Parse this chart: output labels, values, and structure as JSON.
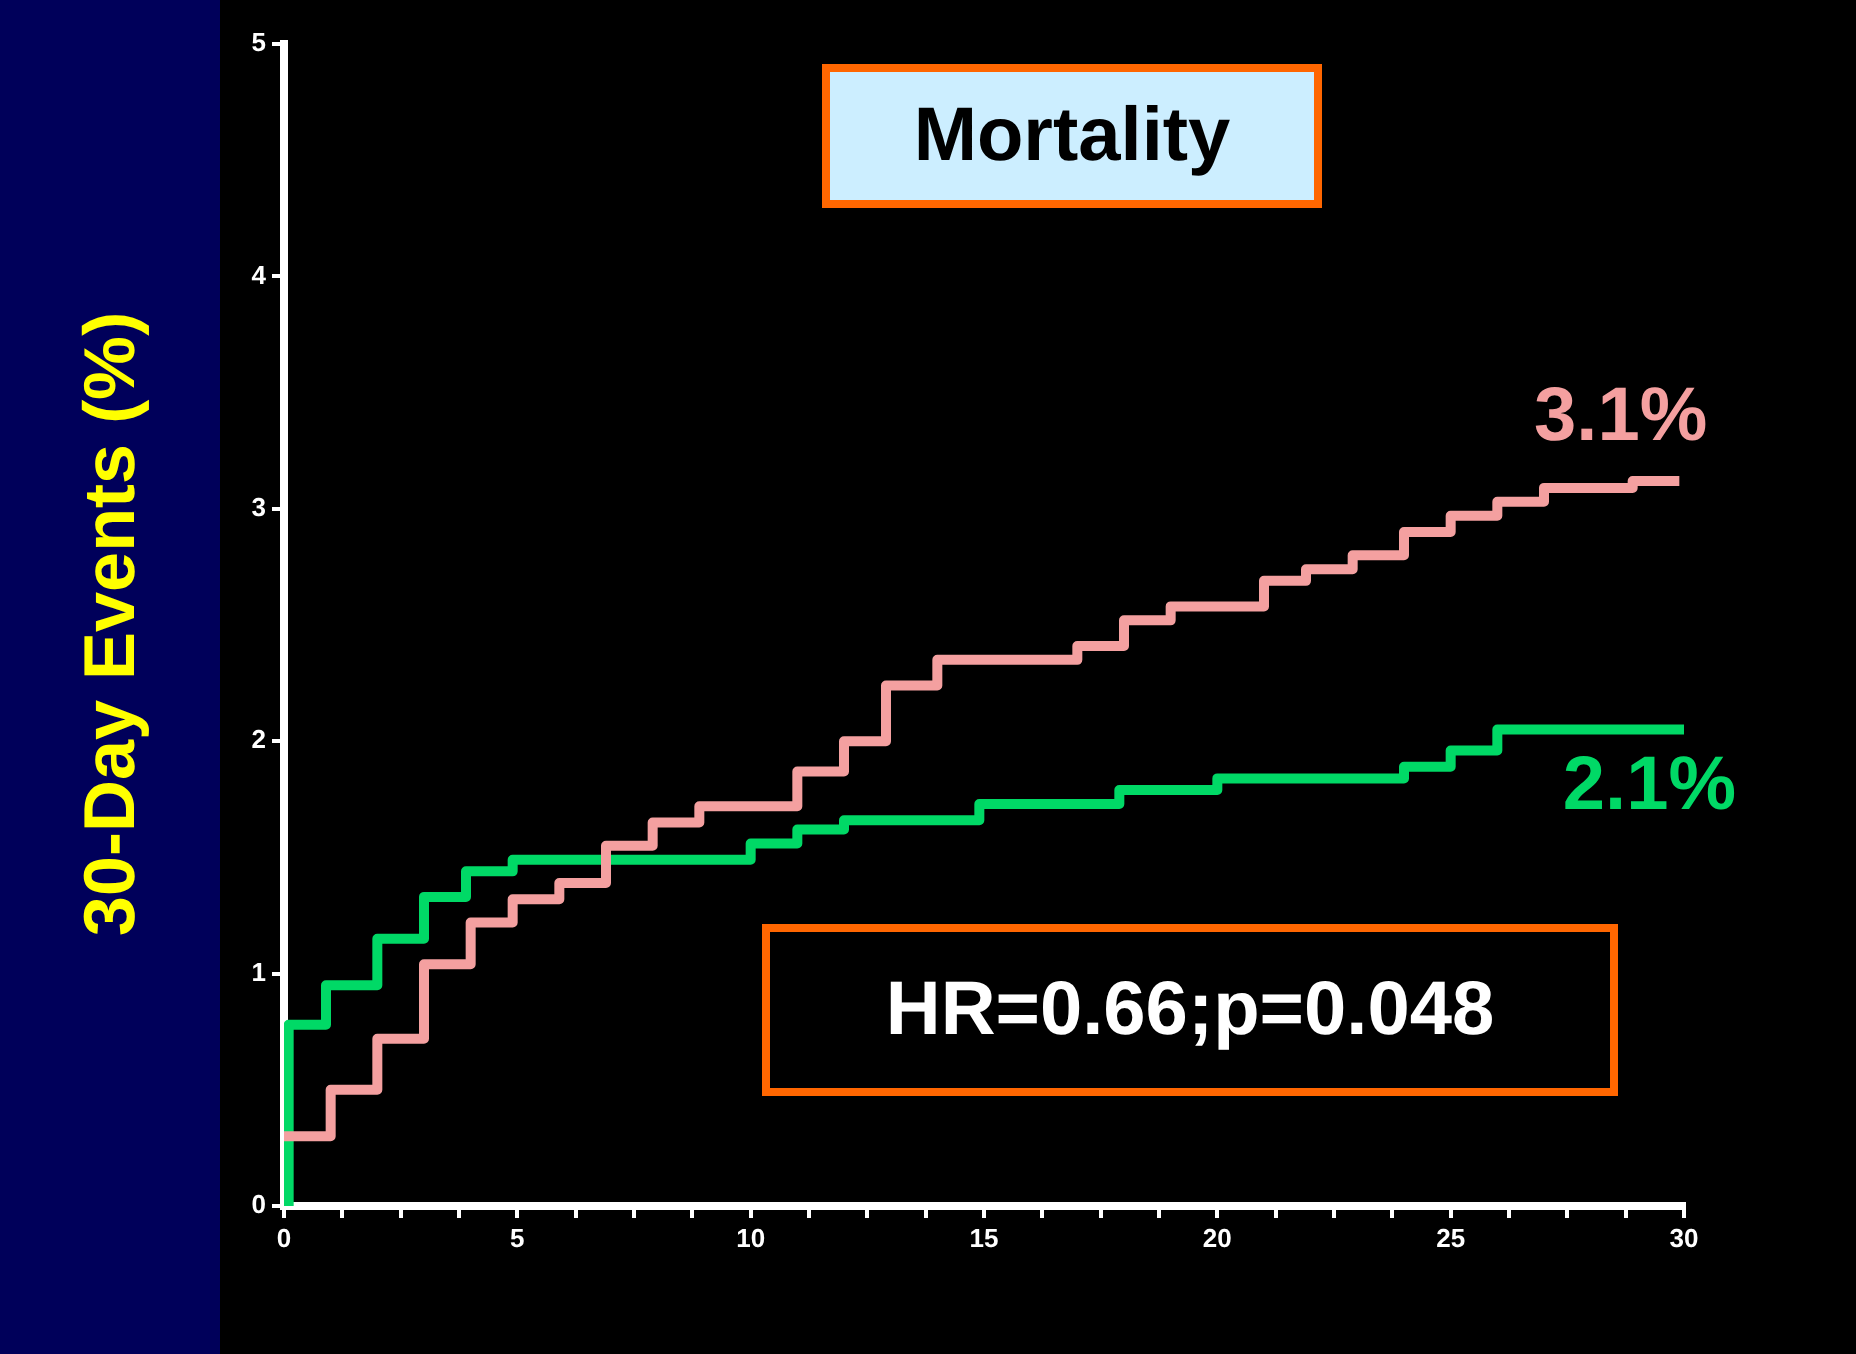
{
  "chart_data": {
    "type": "step",
    "title": "Mortality",
    "ylabel": "30-Day Events (%)",
    "annotations": [
      {
        "text": "3.1%",
        "x": 29.9,
        "y": 3.12
      },
      {
        "text": "2.1%",
        "x": 30,
        "y": 2.05
      },
      "HR=0.66;p=0.048"
    ],
    "series": [
      {
        "color": "#f4a0a0",
        "x": [
          0,
          1,
          2,
          3,
          4,
          4.9,
          5.9,
          6.9,
          7.9,
          8.9,
          11,
          12,
          12.9,
          14,
          17,
          18,
          19,
          21,
          21.9,
          22.9,
          24,
          25,
          26,
          27,
          28.9,
          29.9
        ],
        "values": [
          0.3,
          0.5,
          0.72,
          1.04,
          1.22,
          1.32,
          1.39,
          1.55,
          1.65,
          1.72,
          1.87,
          2.0,
          2.24,
          2.35,
          2.41,
          2.52,
          2.58,
          2.69,
          2.74,
          2.8,
          2.9,
          2.97,
          3.03,
          3.09,
          3.12,
          3.12
        ]
      },
      {
        "color": "#00d966",
        "x": [
          0,
          0.1,
          0.9,
          2,
          3,
          3.9,
          4.9,
          10,
          11,
          12,
          14.9,
          17.9,
          20,
          24,
          25,
          26,
          30
        ],
        "values": [
          0,
          0.78,
          0.95,
          1.15,
          1.33,
          1.44,
          1.49,
          1.56,
          1.62,
          1.66,
          1.73,
          1.79,
          1.84,
          1.89,
          1.96,
          2.05,
          2.05
        ]
      }
    ],
    "xlim": [
      0,
      30
    ],
    "xticks": [
      0,
      {
        "value": 1.25,
        "label": null
      },
      {
        "value": 2.5,
        "label": null
      },
      {
        "value": 3.75,
        "label": null
      },
      5,
      {
        "value": 6.25,
        "label": null
      },
      {
        "value": 7.5,
        "label": null
      },
      {
        "value": 8.75,
        "label": null
      },
      10,
      {
        "value": 11.25,
        "label": null
      },
      {
        "value": 12.5,
        "label": null
      },
      {
        "value": 13.75,
        "label": null
      },
      15,
      {
        "value": 16.25,
        "label": null
      },
      {
        "value": 17.5,
        "label": null
      },
      {
        "value": 18.75,
        "label": null
      },
      20,
      {
        "value": 21.25,
        "label": null
      },
      {
        "value": 22.5,
        "label": null
      },
      {
        "value": 23.75,
        "label": null
      },
      25,
      {
        "value": 26.25,
        "label": null
      },
      {
        "value": 27.5,
        "label": null
      },
      {
        "value": 28.75,
        "label": null
      },
      30
    ],
    "ylim": [
      0,
      5
    ],
    "yticks": [
      0,
      1,
      2,
      3,
      4,
      5
    ],
    "grid": false,
    "legend": false,
    "marker": "none",
    "line_style": "solid"
  }
}
